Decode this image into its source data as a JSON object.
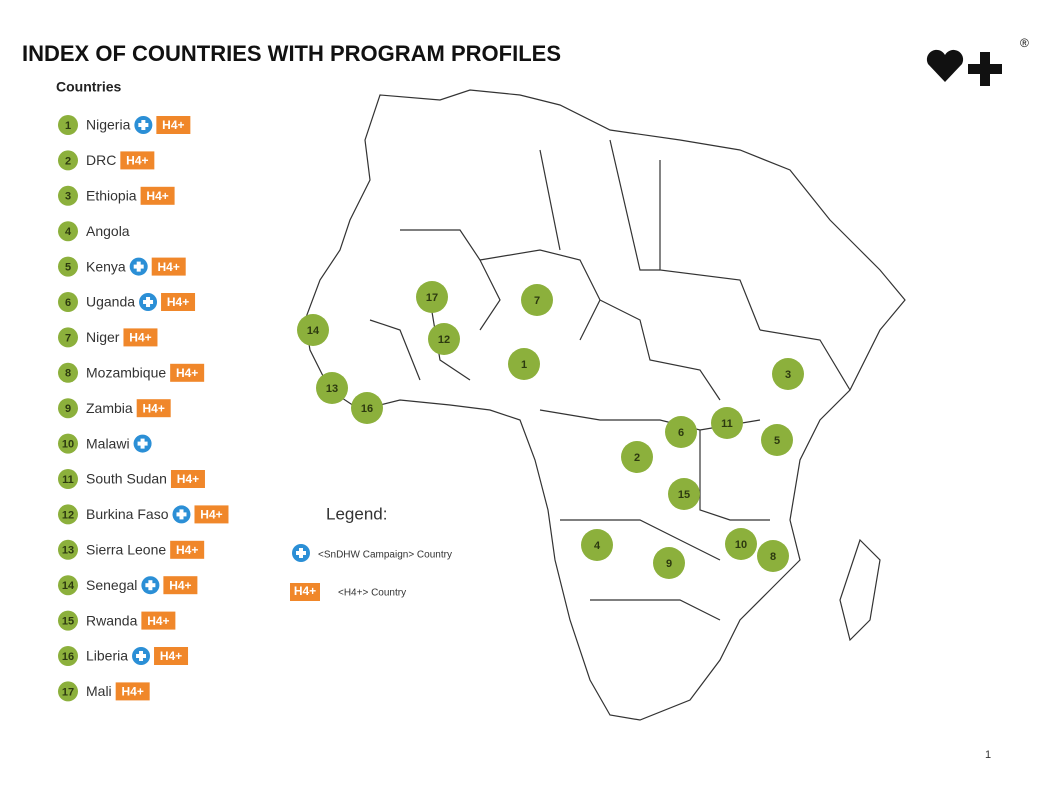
{
  "header": {
    "title": "INDEX OF COUNTRIES WITH PROGRAM PROFILES",
    "logo_mark": "®"
  },
  "list_heading": "Countries",
  "badge_label": "H4+",
  "countries": [
    {
      "number": 1,
      "name": "Nigeria",
      "campaign": true,
      "h4": true
    },
    {
      "number": 2,
      "name": "DRC",
      "campaign": false,
      "h4": true
    },
    {
      "number": 3,
      "name": "Ethiopia",
      "campaign": false,
      "h4": true
    },
    {
      "number": 4,
      "name": "Angola",
      "campaign": false,
      "h4": false
    },
    {
      "number": 5,
      "name": "Kenya",
      "campaign": true,
      "h4": true
    },
    {
      "number": 6,
      "name": "Uganda",
      "campaign": true,
      "h4": true
    },
    {
      "number": 7,
      "name": "Niger",
      "campaign": false,
      "h4": true
    },
    {
      "number": 8,
      "name": "Mozambique",
      "campaign": false,
      "h4": true
    },
    {
      "number": 9,
      "name": "Zambia",
      "campaign": false,
      "h4": true
    },
    {
      "number": 10,
      "name": "Malawi",
      "campaign": true,
      "h4": false
    },
    {
      "number": 11,
      "name": "South Sudan",
      "campaign": false,
      "h4": true
    },
    {
      "number": 12,
      "name": "Burkina Faso",
      "campaign": true,
      "h4": true
    },
    {
      "number": 13,
      "name": "Sierra Leone",
      "campaign": false,
      "h4": true
    },
    {
      "number": 14,
      "name": "Senegal",
      "campaign": true,
      "h4": true
    },
    {
      "number": 15,
      "name": "Rwanda",
      "campaign": false,
      "h4": true
    },
    {
      "number": 16,
      "name": "Liberia",
      "campaign": true,
      "h4": true
    },
    {
      "number": 17,
      "name": "Mali",
      "campaign": false,
      "h4": true
    }
  ],
  "legend": {
    "title": "Legend:",
    "campaign_text": "<SnDHW Campaign> Country",
    "h4_text": "<H4+> Country"
  },
  "page_number": "1"
}
